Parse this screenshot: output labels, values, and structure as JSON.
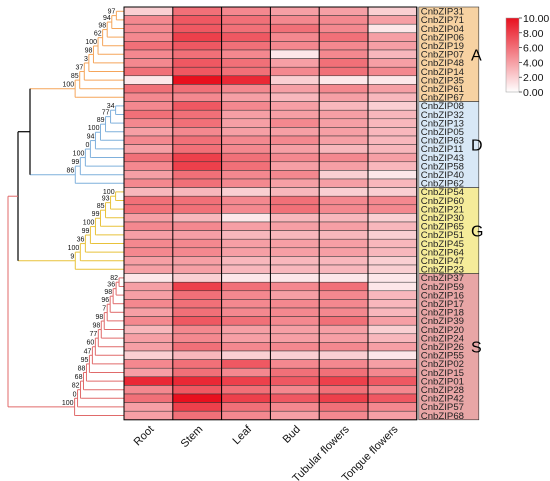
{
  "chart_data": {
    "type": "heatmap",
    "title": "",
    "columns": [
      "Root",
      "Stem",
      "Leaf",
      "Bud",
      "Tubular flowers",
      "Tongue flowers"
    ],
    "rows": [
      "CnbZIP31",
      "CnbZIP71",
      "CnbZIP04",
      "CnbZIP06",
      "CnbZIP19",
      "CnbZIP07",
      "CnbZIP48",
      "CnbZIP14",
      "CnbZIP35",
      "CnbZIP61",
      "CnbZIP67",
      "CnbZIP08",
      "CnbZIP32",
      "CnbZIP13",
      "CnbZIP05",
      "CnbZIP63",
      "CnbZIP11",
      "CnbZIP43",
      "CnbZIP58",
      "CnbZIP40",
      "CnbZIP62",
      "CnbZIP54",
      "CnbZIP60",
      "CnbZIP21",
      "CnbZIP30",
      "CnbZIP65",
      "CnbZIP51",
      "CnbZIP45",
      "CnbZIP64",
      "CnbZIP47",
      "CnbZIP23",
      "CnbZIP37",
      "CnbZIP59",
      "CnbZIP16",
      "CnbZIP17",
      "CnbZIP18",
      "CnbZIP39",
      "CnbZIP20",
      "CnbZIP24",
      "CnbZIP26",
      "CnbZIP55",
      "CnbZIP02",
      "CnbZIP15",
      "CnbZIP01",
      "CnbZIP28",
      "CnbZIP42",
      "CnbZIP57",
      "CnbZIP68"
    ],
    "values": [
      [
        2,
        6,
        5,
        4,
        4,
        2
      ],
      [
        5,
        7,
        6,
        5,
        5,
        4
      ],
      [
        5,
        7,
        6,
        6,
        5,
        1
      ],
      [
        5,
        8,
        7,
        5,
        6,
        4
      ],
      [
        6,
        7,
        6,
        5,
        5,
        4
      ],
      [
        5,
        6,
        5,
        1,
        5,
        3
      ],
      [
        5,
        7,
        6,
        4,
        6,
        4
      ],
      [
        6,
        7,
        6,
        5,
        6,
        5
      ],
      [
        1,
        10,
        9,
        2,
        1,
        1
      ],
      [
        6,
        6,
        5,
        4,
        5,
        4
      ],
      [
        5,
        5,
        4,
        3,
        4,
        3
      ],
      [
        5,
        7,
        5,
        4,
        3,
        2
      ],
      [
        6,
        6,
        4,
        4,
        4,
        3
      ],
      [
        5,
        6,
        4,
        5,
        4,
        3
      ],
      [
        4,
        5,
        4,
        4,
        4,
        3
      ],
      [
        5,
        6,
        5,
        5,
        4,
        3
      ],
      [
        4,
        6,
        5,
        4,
        3,
        3
      ],
      [
        6,
        8,
        6,
        5,
        5,
        4
      ],
      [
        5,
        8,
        6,
        4,
        4,
        3
      ],
      [
        4,
        6,
        5,
        5,
        2,
        1
      ],
      [
        5,
        6,
        5,
        4,
        4,
        3
      ],
      [
        3,
        3,
        2,
        3,
        2,
        2
      ],
      [
        6,
        6,
        5,
        6,
        5,
        5
      ],
      [
        6,
        6,
        5,
        6,
        5,
        5
      ],
      [
        4,
        3,
        1,
        3,
        3,
        2
      ],
      [
        5,
        5,
        4,
        4,
        4,
        3
      ],
      [
        4,
        4,
        3,
        3,
        3,
        2
      ],
      [
        5,
        5,
        4,
        4,
        4,
        3
      ],
      [
        5,
        5,
        4,
        4,
        4,
        3
      ],
      [
        4,
        4,
        3,
        3,
        3,
        2
      ],
      [
        4,
        4,
        3,
        3,
        3,
        2
      ],
      [
        1,
        2,
        1,
        1,
        1,
        1
      ],
      [
        4,
        8,
        6,
        5,
        6,
        1
      ],
      [
        4,
        6,
        5,
        4,
        5,
        3
      ],
      [
        5,
        6,
        5,
        5,
        5,
        3
      ],
      [
        4,
        6,
        5,
        5,
        5,
        3
      ],
      [
        5,
        7,
        6,
        5,
        6,
        4
      ],
      [
        3,
        5,
        4,
        4,
        4,
        2
      ],
      [
        4,
        5,
        4,
        4,
        4,
        3
      ],
      [
        4,
        6,
        5,
        5,
        5,
        4
      ],
      [
        2,
        3,
        2,
        2,
        2,
        1
      ],
      [
        5,
        6,
        7,
        5,
        5,
        4
      ],
      [
        4,
        6,
        5,
        6,
        6,
        5
      ],
      [
        9,
        9,
        8,
        7,
        8,
        7
      ],
      [
        5,
        7,
        6,
        5,
        6,
        5
      ],
      [
        6,
        10,
        8,
        7,
        8,
        7
      ],
      [
        4,
        8,
        6,
        5,
        6,
        5
      ],
      [
        4,
        6,
        5,
        4,
        5,
        4
      ]
    ],
    "groups": [
      {
        "name": "A",
        "start": 0,
        "end": 10,
        "color": "#f7d2a2",
        "branch": "#f5a55a"
      },
      {
        "name": "D",
        "start": 11,
        "end": 20,
        "color": "#d8e8f6",
        "branch": "#7fb0dc"
      },
      {
        "name": "G",
        "start": 21,
        "end": 30,
        "color": "#f5ec9a",
        "branch": "#e8c23a"
      },
      {
        "name": "S",
        "start": 31,
        "end": 47,
        "color": "#e8a6a6",
        "branch": "#e06a6a"
      }
    ],
    "bootstrap": [
      "97",
      "94",
      "98",
      "62",
      "100",
      "98",
      "3",
      "37",
      "85",
      "100",
      "34",
      "77",
      "89",
      "100",
      "94",
      "0",
      "100",
      "99",
      "86",
      "100",
      "93",
      "85",
      "99",
      "100",
      "99",
      "36",
      "100",
      "9",
      "82",
      "36",
      "98",
      "96",
      "7",
      "98",
      "98",
      "77",
      "60",
      "47",
      "95",
      "88",
      "68",
      "82",
      "0",
      "100"
    ],
    "legend": {
      "ticks": [
        "10.00",
        "8.00",
        "6.00",
        "4.00",
        "2.00",
        "0.00"
      ],
      "min": 0,
      "max": 10,
      "colors": [
        "#ffffff",
        "#e8101e"
      ]
    },
    "xlabel": "",
    "ylabel": ""
  }
}
